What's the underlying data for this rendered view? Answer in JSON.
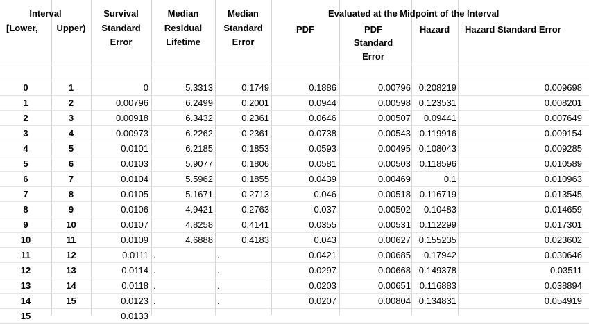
{
  "headers": {
    "interval": "Interval",
    "lower": "[Lower,",
    "upper": "Upper)",
    "survival_se": [
      "Survival",
      "Standard",
      "Error"
    ],
    "median_residual": [
      "Median",
      "Residual",
      "Lifetime"
    ],
    "median_se": [
      "Median",
      "Standard",
      "Error"
    ],
    "evaluated_group": "Evaluated at the Midpoint of the Interval",
    "pdf": "PDF",
    "pdf_se": [
      "PDF",
      "Standard",
      "Error"
    ],
    "hazard": "Hazard",
    "hazard_se": "Hazard Standard Error"
  },
  "rows": [
    {
      "lower": "0",
      "upper": "1",
      "surv_se": "0",
      "med_resid": "5.3313",
      "med_se": "0.1749",
      "pdf": "0.1886",
      "pdf_se": "0.00796",
      "hazard": "0.208219",
      "hazard_se": "0.009698"
    },
    {
      "lower": "1",
      "upper": "2",
      "surv_se": "0.00796",
      "med_resid": "6.2499",
      "med_se": "0.2001",
      "pdf": "0.0944",
      "pdf_se": "0.00598",
      "hazard": "0.123531",
      "hazard_se": "0.008201"
    },
    {
      "lower": "2",
      "upper": "3",
      "surv_se": "0.00918",
      "med_resid": "6.3432",
      "med_se": "0.2361",
      "pdf": "0.0646",
      "pdf_se": "0.00507",
      "hazard": "0.09441",
      "hazard_se": "0.007649"
    },
    {
      "lower": "3",
      "upper": "4",
      "surv_se": "0.00973",
      "med_resid": "6.2262",
      "med_se": "0.2361",
      "pdf": "0.0738",
      "pdf_se": "0.00543",
      "hazard": "0.119916",
      "hazard_se": "0.009154"
    },
    {
      "lower": "4",
      "upper": "5",
      "surv_se": "0.0101",
      "med_resid": "6.2185",
      "med_se": "0.1853",
      "pdf": "0.0593",
      "pdf_se": "0.00495",
      "hazard": "0.108043",
      "hazard_se": "0.009285"
    },
    {
      "lower": "5",
      "upper": "6",
      "surv_se": "0.0103",
      "med_resid": "5.9077",
      "med_se": "0.1806",
      "pdf": "0.0581",
      "pdf_se": "0.00503",
      "hazard": "0.118596",
      "hazard_se": "0.010589"
    },
    {
      "lower": "6",
      "upper": "7",
      "surv_se": "0.0104",
      "med_resid": "5.5962",
      "med_se": "0.1855",
      "pdf": "0.0439",
      "pdf_se": "0.00469",
      "hazard": "0.1",
      "hazard_se": "0.010963"
    },
    {
      "lower": "7",
      "upper": "8",
      "surv_se": "0.0105",
      "med_resid": "5.1671",
      "med_se": "0.2713",
      "pdf": "0.046",
      "pdf_se": "0.00518",
      "hazard": "0.116719",
      "hazard_se": "0.013545"
    },
    {
      "lower": "8",
      "upper": "9",
      "surv_se": "0.0106",
      "med_resid": "4.9421",
      "med_se": "0.2763",
      "pdf": "0.037",
      "pdf_se": "0.00502",
      "hazard": "0.10483",
      "hazard_se": "0.014659"
    },
    {
      "lower": "9",
      "upper": "10",
      "surv_se": "0.0107",
      "med_resid": "4.8258",
      "med_se": "0.4141",
      "pdf": "0.0355",
      "pdf_se": "0.00531",
      "hazard": "0.112299",
      "hazard_se": "0.017301"
    },
    {
      "lower": "10",
      "upper": "11",
      "surv_se": "0.0109",
      "med_resid": "4.6888",
      "med_se": "0.4183",
      "pdf": "0.043",
      "pdf_se": "0.00627",
      "hazard": "0.155235",
      "hazard_se": "0.023602"
    },
    {
      "lower": "11",
      "upper": "12",
      "surv_se": "0.0111",
      "med_resid": ".",
      "med_se": ".",
      "pdf": "0.0421",
      "pdf_se": "0.00685",
      "hazard": "0.17942",
      "hazard_se": "0.030646"
    },
    {
      "lower": "12",
      "upper": "13",
      "surv_se": "0.0114",
      "med_resid": ".",
      "med_se": ".",
      "pdf": "0.0297",
      "pdf_se": "0.00668",
      "hazard": "0.149378",
      "hazard_se": "0.03511"
    },
    {
      "lower": "13",
      "upper": "14",
      "surv_se": "0.0118",
      "med_resid": ".",
      "med_se": ".",
      "pdf": "0.0203",
      "pdf_se": "0.00651",
      "hazard": "0.116883",
      "hazard_se": "0.038894"
    },
    {
      "lower": "14",
      "upper": "15",
      "surv_se": "0.0123",
      "med_resid": ".",
      "med_se": ".",
      "pdf": "0.0207",
      "pdf_se": "0.00804",
      "hazard": "0.134831",
      "hazard_se": "0.054919"
    },
    {
      "lower": "15",
      "upper": "",
      "surv_se": "0.0133",
      "med_resid": "",
      "med_se": "",
      "pdf": "",
      "pdf_se": "",
      "hazard": "",
      "hazard_se": ""
    }
  ]
}
